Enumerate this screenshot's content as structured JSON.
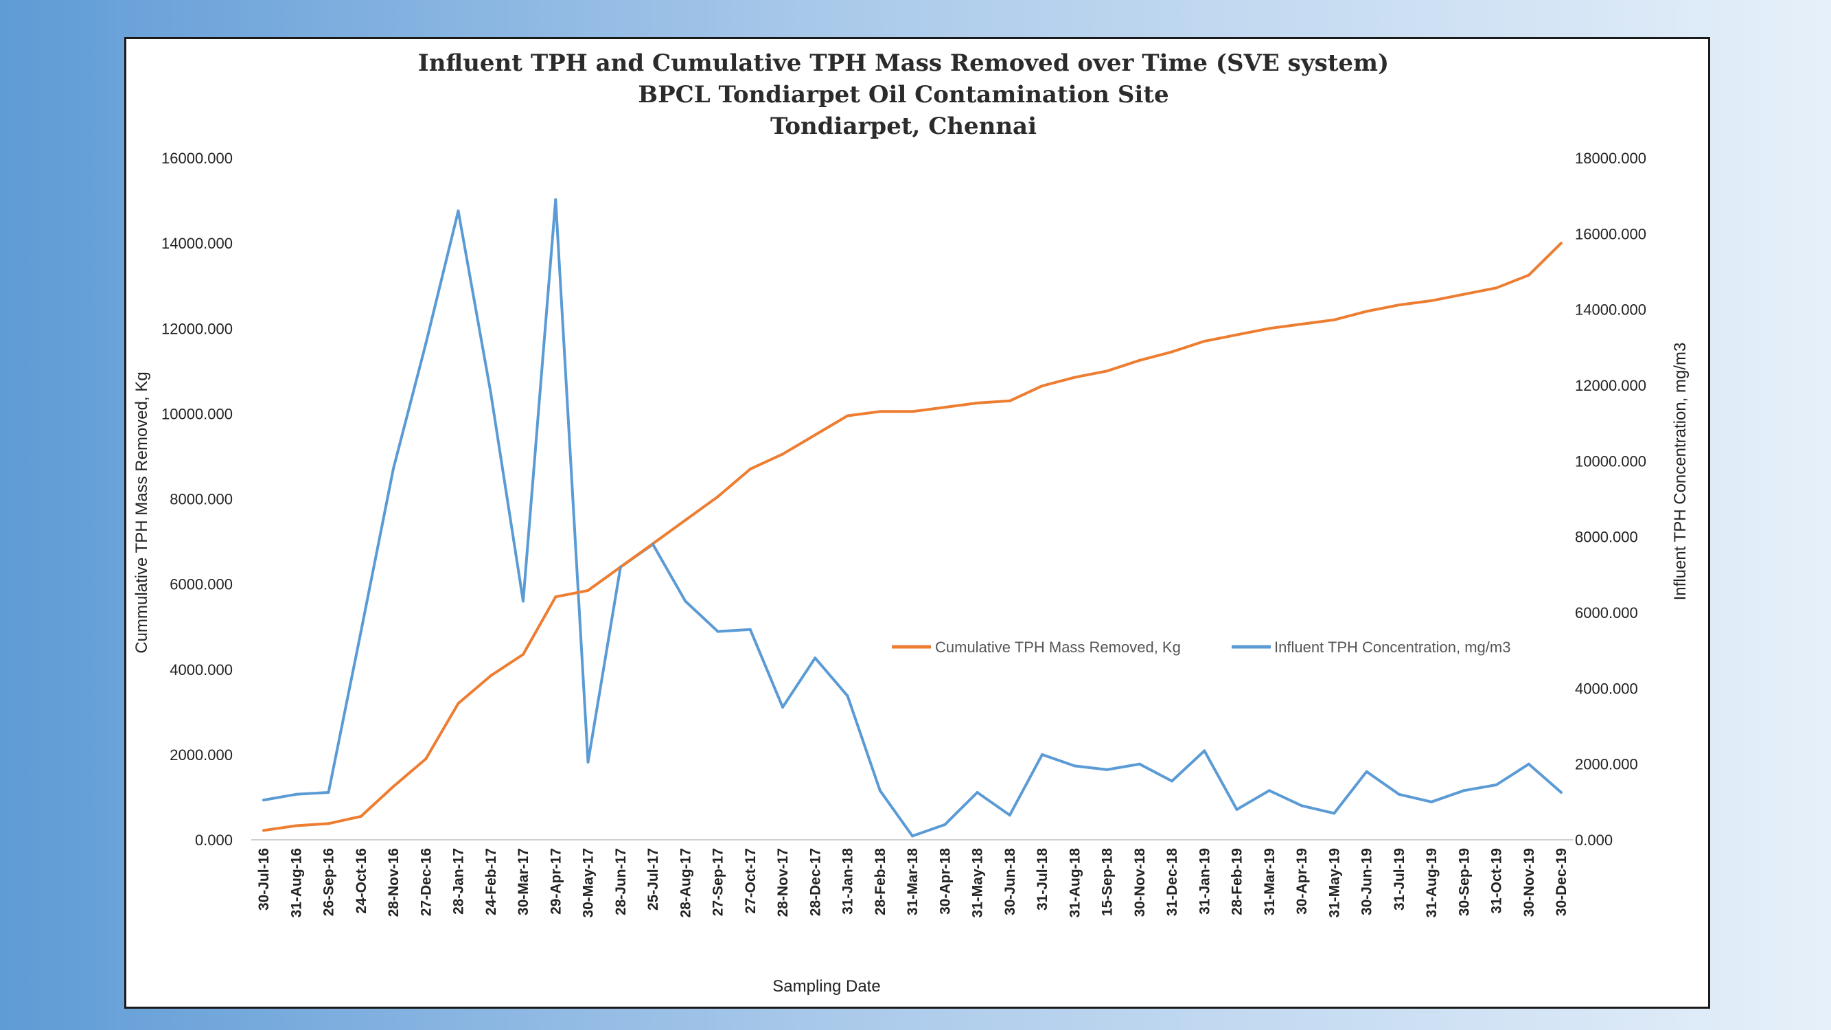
{
  "colors": {
    "cumulative": "#ed7d31",
    "influent": "#5b9bd5",
    "axis": "#cfcfcf"
  },
  "chart_data": {
    "type": "line",
    "title_lines": [
      "Influent TPH and Cumulative TPH Mass Removed  over Time (SVE system)",
      "BPCL Tondiarpet  Oil Contamination Site",
      "Tondiarpet,  Chennai"
    ],
    "xlabel": "Sampling  Date",
    "ylabel_left": "Cummulative   TPH Mass Removed,  Kg",
    "ylabel_right": "Influent  TPH Concentration,   mg/m3",
    "ylim_left": [
      0,
      16000
    ],
    "ylim_right": [
      0,
      18000
    ],
    "yticks_left": [
      "0.000",
      "2000.000",
      "4000.000",
      "6000.000",
      "8000.000",
      "10000.000",
      "12000.000",
      "14000.000",
      "16000.000"
    ],
    "yticks_right": [
      "0.000",
      "2000.000",
      "4000.000",
      "6000.000",
      "8000.000",
      "10000.000",
      "12000.000",
      "14000.000",
      "16000.000",
      "18000.000"
    ],
    "legend_position": "right",
    "categories": [
      "30-Jul-16",
      "31-Aug-16",
      "26-Sep-16",
      "24-Oct-16",
      "28-Nov-16",
      "27-Dec-16",
      "28-Jan-17",
      "24-Feb-17",
      "30-Mar-17",
      "29-Apr-17",
      "30-May-17",
      "28-Jun-17",
      "25-Jul-17",
      "28-Aug-17",
      "27-Sep-17",
      "27-Oct-17",
      "28-Nov-17",
      "28-Dec-17",
      "31-Jan-18",
      "28-Feb-18",
      "31-Mar-18",
      "30-Apr-18",
      "31-May-18",
      "30-Jun-18",
      "31-Jul-18",
      "31-Aug-18",
      "15-Sep-18",
      "30-Nov-18",
      "31-Dec-18",
      "31-Jan-19",
      "28-Feb-19",
      "31-Mar-19",
      "30-Apr-19",
      "31-May-19",
      "30-Jun-19",
      "31-Jul-19",
      "31-Aug-19",
      "30-Sep-19",
      "31-Oct-19",
      "30-Nov-19",
      "30-Dec-19"
    ],
    "series": [
      {
        "name": "Cumulative TPH Mass Removed, Kg",
        "axis": "left",
        "values": [
          220,
          330,
          380,
          550,
          1250,
          1900,
          3200,
          3850,
          4350,
          5700,
          5850,
          6400,
          6950,
          7500,
          8050,
          8700,
          9050,
          9500,
          9950,
          10050,
          10050,
          10150,
          10250,
          10300,
          10650,
          10850,
          11000,
          11250,
          11450,
          11700,
          11850,
          12000,
          12100,
          12200,
          12400,
          12550,
          12650,
          12800,
          12950,
          13250,
          14000
        ]
      },
      {
        "name": "Influent TPH Concentration, mg/m3",
        "axis": "right",
        "values": [
          1050,
          1200,
          1250,
          5500,
          9800,
          13100,
          16600,
          11800,
          6300,
          16900,
          2050,
          7200,
          7800,
          6300,
          5500,
          5550,
          3500,
          4800,
          3800,
          1300,
          100,
          400,
          1250,
          650,
          2250,
          1950,
          1850,
          2000,
          1550,
          2350,
          800,
          1300,
          900,
          700,
          1800,
          1200,
          1000,
          1300,
          1450,
          2000,
          1250
        ]
      }
    ]
  }
}
